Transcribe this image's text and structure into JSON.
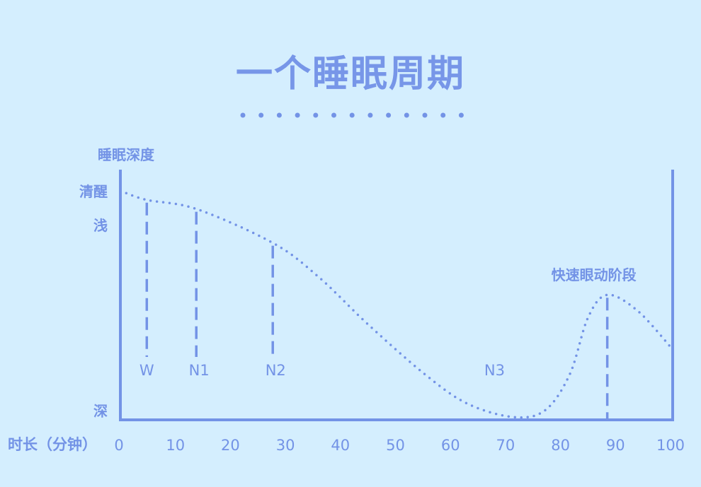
{
  "title": "一个睡眠周期",
  "colors": {
    "background": "#d4eefe",
    "accent": "#7393e6"
  },
  "chart_data": {
    "type": "line",
    "ylabel": "睡眠深度",
    "xlabel": "时长（分钟）",
    "y_levels": [
      {
        "label": "清醒",
        "depth": 0
      },
      {
        "label": "浅",
        "depth": 0.15
      },
      {
        "label": "深",
        "depth": 0.97
      }
    ],
    "xlim": [
      0,
      100
    ],
    "xticks": [
      "0",
      "10",
      "20",
      "30",
      "40",
      "50",
      "60",
      "70",
      "80",
      "90",
      "100"
    ],
    "curve": [
      [
        0,
        0
      ],
      [
        4.8,
        0.04
      ],
      [
        13.8,
        0.08
      ],
      [
        27.7,
        0.23
      ],
      [
        36,
        0.38
      ],
      [
        45,
        0.59
      ],
      [
        55.3,
        0.81
      ],
      [
        63,
        0.94
      ],
      [
        71.4,
        1.0
      ],
      [
        77.2,
        0.97
      ],
      [
        81.7,
        0.81
      ],
      [
        85,
        0.56
      ],
      [
        88.5,
        0.46
      ],
      [
        94,
        0.53
      ],
      [
        100,
        0.69
      ]
    ],
    "stages": [
      {
        "label": "W",
        "x": 4.8,
        "depth": 0.04,
        "marker": true
      },
      {
        "label": "N1",
        "x": 13.8,
        "depth": 0.08,
        "marker": true
      },
      {
        "label": "N2",
        "x": 27.7,
        "depth": 0.23,
        "marker": true
      },
      {
        "label": "N3",
        "x": 67.5,
        "marker": false
      },
      {
        "label": "快速眼动阶段",
        "x": 88.5,
        "depth": 0.46,
        "marker": true,
        "label_above": true
      }
    ]
  }
}
